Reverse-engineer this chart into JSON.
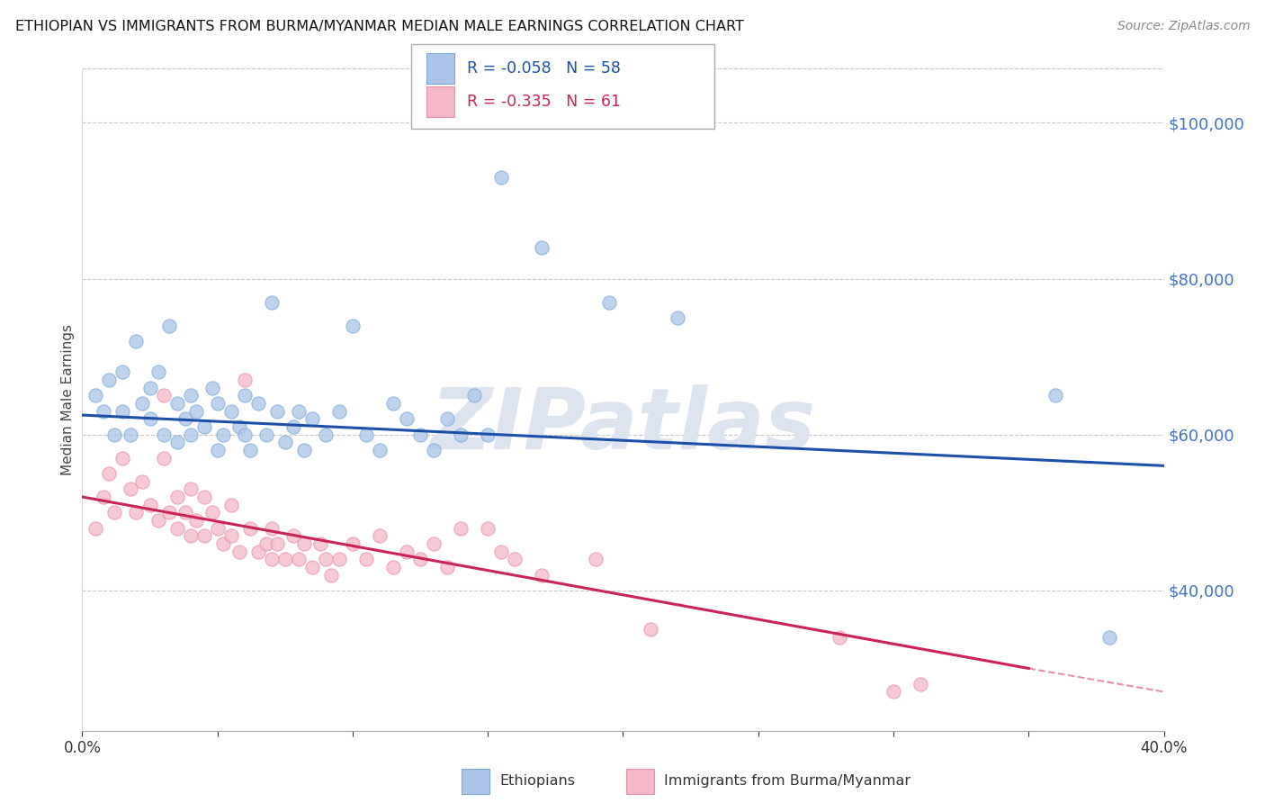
{
  "title": "ETHIOPIAN VS IMMIGRANTS FROM BURMA/MYANMAR MEDIAN MALE EARNINGS CORRELATION CHART",
  "source": "Source: ZipAtlas.com",
  "ylabel": "Median Male Earnings",
  "xlim": [
    0.0,
    0.4
  ],
  "ylim": [
    22000,
    107000
  ],
  "yticks_right": [
    40000,
    60000,
    80000,
    100000
  ],
  "ytick_labels_right": [
    "$40,000",
    "$60,000",
    "$80,000",
    "$100,000"
  ],
  "axis_color": "#4472c4",
  "grid_color": "#c8c8c8",
  "watermark": "ZIPatlas",
  "watermark_color": "#dde4f0",
  "series1_label": "Ethiopians",
  "series1_color": "#aac4e8",
  "series1_edge": "#7aaad4",
  "series1_R": "-0.058",
  "series1_N": "58",
  "series2_label": "Immigrants from Burma/Myanmar",
  "series2_color": "#f4b8c8",
  "series2_edge": "#e890a8",
  "series2_R": "-0.335",
  "series2_N": "61",
  "trendline1_color": "#1a4faa",
  "trendline2_color": "#cc2255",
  "blue_x": [
    0.005,
    0.008,
    0.01,
    0.012,
    0.015,
    0.015,
    0.018,
    0.02,
    0.022,
    0.025,
    0.025,
    0.028,
    0.03,
    0.032,
    0.035,
    0.035,
    0.038,
    0.04,
    0.04,
    0.042,
    0.045,
    0.048,
    0.05,
    0.05,
    0.052,
    0.055,
    0.058,
    0.06,
    0.06,
    0.062,
    0.065,
    0.068,
    0.07,
    0.072,
    0.075,
    0.078,
    0.08,
    0.082,
    0.085,
    0.09,
    0.095,
    0.1,
    0.105,
    0.11,
    0.115,
    0.12,
    0.125,
    0.13,
    0.135,
    0.14,
    0.145,
    0.15,
    0.155,
    0.17,
    0.195,
    0.22,
    0.36,
    0.38
  ],
  "blue_y": [
    65000,
    63000,
    67000,
    60000,
    63000,
    68000,
    60000,
    72000,
    64000,
    66000,
    62000,
    68000,
    60000,
    74000,
    64000,
    59000,
    62000,
    65000,
    60000,
    63000,
    61000,
    66000,
    58000,
    64000,
    60000,
    63000,
    61000,
    65000,
    60000,
    58000,
    64000,
    60000,
    77000,
    63000,
    59000,
    61000,
    63000,
    58000,
    62000,
    60000,
    63000,
    74000,
    60000,
    58000,
    64000,
    62000,
    60000,
    58000,
    62000,
    60000,
    65000,
    60000,
    93000,
    84000,
    77000,
    75000,
    65000,
    34000
  ],
  "pink_x": [
    0.005,
    0.008,
    0.01,
    0.012,
    0.015,
    0.018,
    0.02,
    0.022,
    0.025,
    0.028,
    0.03,
    0.03,
    0.032,
    0.035,
    0.035,
    0.038,
    0.04,
    0.04,
    0.042,
    0.045,
    0.045,
    0.048,
    0.05,
    0.052,
    0.055,
    0.055,
    0.058,
    0.06,
    0.062,
    0.065,
    0.068,
    0.07,
    0.07,
    0.072,
    0.075,
    0.078,
    0.08,
    0.082,
    0.085,
    0.088,
    0.09,
    0.092,
    0.095,
    0.1,
    0.105,
    0.11,
    0.115,
    0.12,
    0.125,
    0.13,
    0.135,
    0.14,
    0.15,
    0.155,
    0.16,
    0.17,
    0.19,
    0.21,
    0.28,
    0.3,
    0.31
  ],
  "pink_y": [
    48000,
    52000,
    55000,
    50000,
    57000,
    53000,
    50000,
    54000,
    51000,
    49000,
    65000,
    57000,
    50000,
    48000,
    52000,
    50000,
    47000,
    53000,
    49000,
    47000,
    52000,
    50000,
    48000,
    46000,
    47000,
    51000,
    45000,
    67000,
    48000,
    45000,
    46000,
    48000,
    44000,
    46000,
    44000,
    47000,
    44000,
    46000,
    43000,
    46000,
    44000,
    42000,
    44000,
    46000,
    44000,
    47000,
    43000,
    45000,
    44000,
    46000,
    43000,
    48000,
    48000,
    45000,
    44000,
    42000,
    44000,
    35000,
    34000,
    27000,
    28000
  ],
  "trendline1_x0": 0.0,
  "trendline1_y0": 62500,
  "trendline1_x1": 0.4,
  "trendline1_y1": 56000,
  "trendline2_x0": 0.0,
  "trendline2_y0": 52000,
  "trendline2_x1": 0.35,
  "trendline2_y1": 30000,
  "trendline2_dash_x0": 0.35,
  "trendline2_dash_y0": 30000,
  "trendline2_dash_x1": 0.4,
  "trendline2_dash_y1": 27000,
  "fig_bg": "#ffffff",
  "plot_bg": "#ffffff",
  "legend_R_color": "#1a4faa",
  "legend_R2_color": "#cc2255"
}
